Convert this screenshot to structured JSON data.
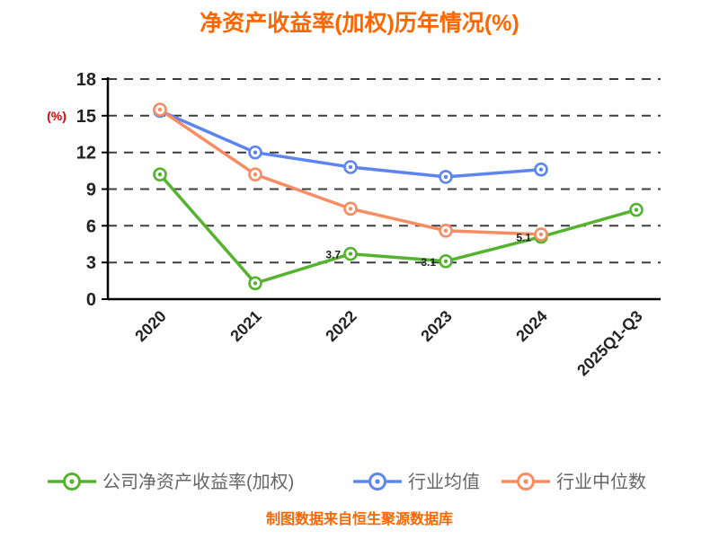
{
  "chart_data": {
    "type": "line",
    "title": "净资产收益率(加权)历年情况(%)",
    "ylabel": "(%)",
    "categories": [
      "2020",
      "2021",
      "2022",
      "2023",
      "2024",
      "2025Q1-Q3"
    ],
    "ylim": [
      0,
      18
    ],
    "yticks": [
      0,
      3,
      6,
      9,
      12,
      15,
      18
    ],
    "grid": "dashed-horizontal",
    "legend_position": "bottom",
    "series": [
      {
        "key": "company-roe-weighted",
        "name": "公司净资产收益率(加权)",
        "color": "#55B330",
        "values": [
          10.2,
          1.3,
          3.7,
          3.1,
          5.1,
          7.3
        ]
      },
      {
        "key": "industry-mean",
        "name": "行业均值",
        "color": "#5C85F0",
        "values": [
          15.4,
          12,
          10.8,
          10,
          10.6,
          null
        ]
      },
      {
        "key": "industry-median",
        "name": "行业中位数",
        "color": "#F98C62",
        "values": [
          15.5,
          10.2,
          7.4,
          5.6,
          5.3,
          null
        ]
      }
    ],
    "point_labels": [
      {
        "series": 0,
        "index": 2,
        "text": "3.7"
      },
      {
        "series": 0,
        "index": 3,
        "text": "3.1"
      },
      {
        "series": 0,
        "index": 4,
        "text": "5.1"
      }
    ]
  },
  "footer": {
    "source_note": "制图数据来自恒生聚源数据库"
  },
  "colors": {
    "title": "#FF6600",
    "ylabel": "#E60000",
    "axis": "#000000",
    "grid": "#3D3D3D",
    "tick_label": "#222222",
    "legend_text": "#666666",
    "footer": "#FF6600"
  }
}
